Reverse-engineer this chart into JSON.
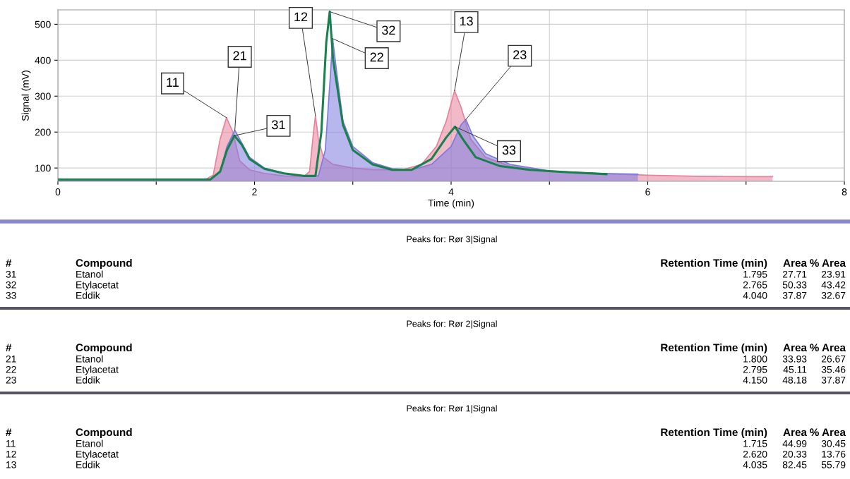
{
  "chart_data": {
    "type": "area",
    "xlabel": "Time (min)",
    "ylabel": "Signal (mV)",
    "xlim": [
      0,
      8
    ],
    "ylim": [
      63,
      540
    ],
    "xticks": [
      0,
      {
        "value": 1,
        "label": null
      },
      2,
      {
        "value": 3,
        "label": null
      },
      4,
      {
        "value": 5,
        "label": null
      },
      6,
      {
        "value": 7,
        "label": null
      },
      8
    ],
    "yticks": [
      100,
      200,
      300,
      400,
      500
    ],
    "grid": true,
    "legend": false,
    "series": [
      {
        "color": "#e8819c",
        "x": [
          0,
          1.5,
          1.58,
          1.65,
          1.715,
          1.78,
          1.85,
          1.95,
          2.1,
          2.3,
          2.5,
          2.56,
          2.6,
          2.62,
          2.65,
          2.7,
          2.8,
          3.0,
          3.2,
          3.5,
          3.7,
          3.85,
          3.95,
          4.035,
          4.1,
          4.2,
          4.35,
          4.6,
          5.0,
          5.5,
          6.0,
          6.5,
          7.0,
          7.27
        ],
        "values": [
          68,
          68,
          80,
          180,
          240,
          200,
          120,
          95,
          85,
          78,
          76,
          90,
          200,
          245,
          180,
          130,
          110,
          100,
          95,
          95,
          110,
          160,
          230,
          315,
          270,
          180,
          130,
          105,
          90,
          85,
          80,
          77,
          76,
          76
        ]
      },
      {
        "color": "#7b7be0",
        "x": [
          0,
          1.55,
          1.65,
          1.72,
          1.8,
          1.87,
          1.95,
          2.1,
          2.3,
          2.5,
          2.65,
          2.72,
          2.77,
          2.795,
          2.83,
          2.9,
          3.0,
          3.2,
          3.4,
          3.6,
          3.8,
          4.0,
          4.1,
          4.15,
          4.22,
          4.35,
          4.6,
          5.0,
          5.5,
          5.9
        ],
        "values": [
          68,
          68,
          90,
          160,
          205,
          170,
          130,
          100,
          85,
          78,
          78,
          150,
          350,
          460,
          380,
          230,
          160,
          115,
          98,
          95,
          110,
          160,
          220,
          235,
          190,
          140,
          110,
          92,
          85,
          83
        ]
      },
      {
        "type": "line",
        "color": "#1a8050",
        "x": [
          0,
          1.55,
          1.65,
          1.72,
          1.795,
          1.87,
          1.95,
          2.1,
          2.3,
          2.5,
          2.62,
          2.68,
          2.73,
          2.765,
          2.8,
          2.9,
          3.0,
          3.2,
          3.4,
          3.6,
          3.8,
          3.95,
          4.04,
          4.12,
          4.25,
          4.5,
          4.8,
          5.2,
          5.58
        ],
        "values": [
          68,
          68,
          90,
          150,
          190,
          165,
          125,
          98,
          85,
          78,
          78,
          200,
          450,
          535,
          400,
          220,
          150,
          110,
          95,
          95,
          125,
          185,
          215,
          180,
          130,
          105,
          95,
          88,
          83
        ]
      }
    ],
    "annotations": [
      {
        "text": "11",
        "x": 1.715,
        "y": 240
      },
      {
        "text": "21",
        "x": 1.8,
        "y": 205
      },
      {
        "text": "31",
        "x": 1.795,
        "y": 190
      },
      {
        "text": "12",
        "x": 2.62,
        "y": 245
      },
      {
        "text": "22",
        "x": 2.795,
        "y": 460
      },
      {
        "text": "32",
        "x": 2.765,
        "y": 535
      },
      {
        "text": "13",
        "x": 4.035,
        "y": 315
      },
      {
        "text": "23",
        "x": 4.15,
        "y": 235
      },
      {
        "text": "33",
        "x": 4.04,
        "y": 215
      },
      "Peaks for: Rør 3|Signal",
      "#",
      "Compound",
      "Retention Time (min)",
      "Area",
      "% Area",
      "31",
      "Etanol",
      "1.795",
      "27.71",
      "23.91",
      "32",
      "Etylacetat",
      "2.765",
      "50.33",
      "43.42",
      "33",
      "Eddik",
      "4.040",
      "37.87",
      "32.67",
      "Peaks for: Rør 2|Signal",
      "#",
      "Compound",
      "Retention Time (min)",
      "Area",
      "% Area",
      "21",
      "Etanol",
      "1.800",
      "33.93",
      "26.67",
      "22",
      "Etylacetat",
      "2.795",
      "45.11",
      "35.46",
      "23",
      "Eddik",
      "4.150",
      "48.18",
      "37.87",
      "Peaks for: Rør 1|Signal",
      "#",
      "Compound",
      "Retention Time (min)",
      "Area",
      "% Area",
      "11",
      "Etanol",
      "1.715",
      "44.99",
      "30.45",
      "12",
      "Etylacetat",
      "2.620",
      "20.33",
      "13.76",
      "13",
      "Eddik",
      "4.035",
      "82.45",
      "55.79"
    ]
  }
}
